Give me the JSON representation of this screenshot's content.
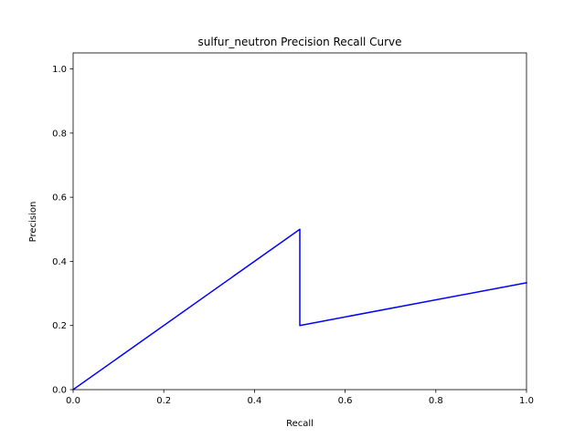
{
  "chart_data": {
    "type": "line",
    "title": "sulfur_neutron Precision Recall Curve",
    "xlabel": "Recall",
    "ylabel": "Precision",
    "xlim": [
      0,
      1
    ],
    "ylim": [
      0,
      1.05
    ],
    "xticks": [
      "0.0",
      "0.2",
      "0.4",
      "0.6",
      "0.8",
      "1.0"
    ],
    "yticks": [
      "0.0",
      "0.2",
      "0.4",
      "0.6",
      "0.8",
      "1.0"
    ],
    "grid": false,
    "legend": null,
    "series": [
      {
        "color": "#0000ff",
        "x": [
          0.0,
          0.5,
          0.5,
          1.0
        ],
        "y": [
          0.0,
          0.5,
          0.2,
          0.3333
        ]
      }
    ]
  }
}
